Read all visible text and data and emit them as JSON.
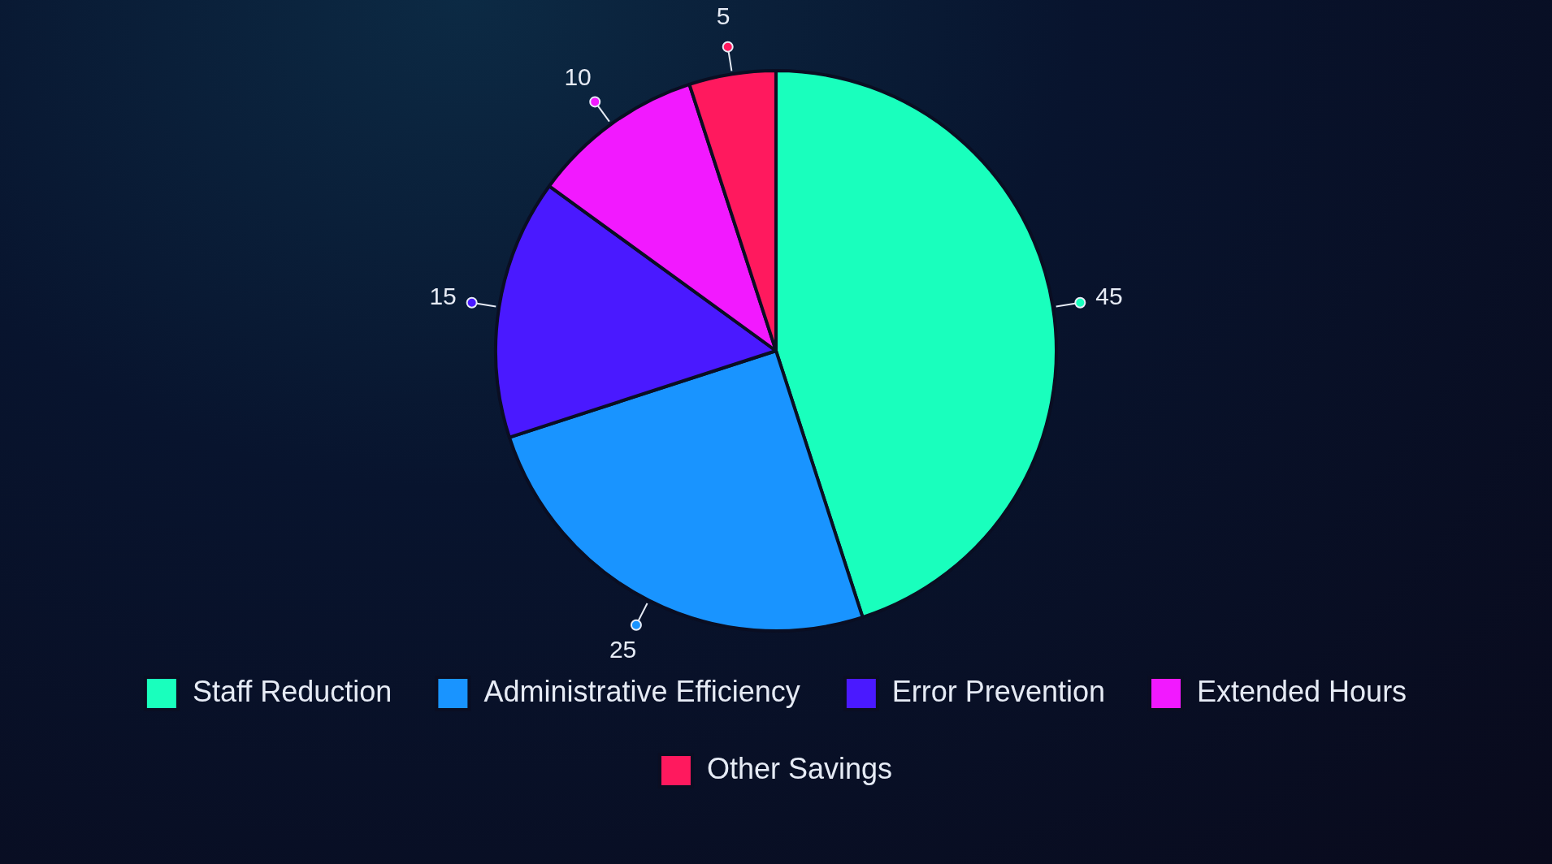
{
  "chart_data": {
    "type": "pie",
    "categories": [
      "Staff Reduction",
      "Administrative Efficiency",
      "Error Prevention",
      "Extended Hours",
      "Other Savings"
    ],
    "values": [
      45,
      25,
      15,
      10,
      5
    ],
    "colors": [
      "#19ffbd",
      "#1994ff",
      "#4a19ff",
      "#f219ff",
      "#ff195e"
    ],
    "data_labels": true,
    "legend": "bottom"
  }
}
